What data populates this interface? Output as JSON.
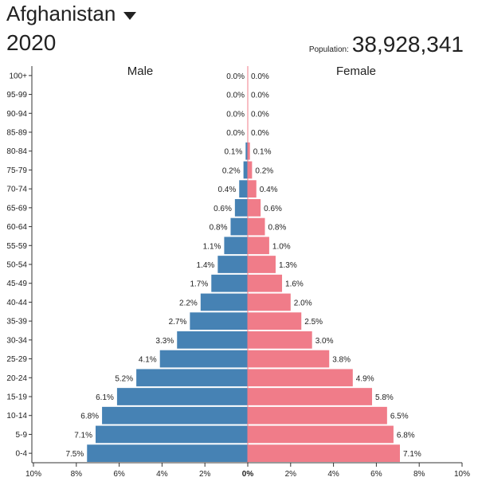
{
  "header": {
    "country": "Afghanistan",
    "year": "2020",
    "population_label": "Population:",
    "population_value": "38,928,341"
  },
  "colors": {
    "male": "#4682b4",
    "female": "#f07c89"
  },
  "chart_data": {
    "type": "bar",
    "orientation": "horizontal-population-pyramid",
    "categories": [
      "100+",
      "95-99",
      "90-94",
      "85-89",
      "80-84",
      "75-79",
      "70-74",
      "65-69",
      "60-64",
      "55-59",
      "50-54",
      "45-49",
      "40-44",
      "35-39",
      "30-34",
      "25-29",
      "20-24",
      "15-19",
      "10-14",
      "5-9",
      "0-4"
    ],
    "series": [
      {
        "name": "Male",
        "values": [
          0.0,
          0.0,
          0.0,
          0.0,
          0.1,
          0.2,
          0.4,
          0.6,
          0.8,
          1.1,
          1.4,
          1.7,
          2.2,
          2.7,
          3.3,
          4.1,
          5.2,
          6.1,
          6.8,
          7.1,
          7.5
        ],
        "labels": [
          "0.0%",
          "0.0%",
          "0.0%",
          "0.0%",
          "0.1%",
          "0.2%",
          "0.4%",
          "0.6%",
          "0.8%",
          "1.1%",
          "1.4%",
          "1.7%",
          "2.2%",
          "2.7%",
          "3.3%",
          "4.1%",
          "5.2%",
          "6.1%",
          "6.8%",
          "7.1%",
          "7.5%"
        ]
      },
      {
        "name": "Female",
        "values": [
          0.0,
          0.0,
          0.0,
          0.0,
          0.1,
          0.2,
          0.4,
          0.6,
          0.8,
          1.0,
          1.3,
          1.6,
          2.0,
          2.5,
          3.0,
          3.8,
          4.9,
          5.8,
          6.5,
          6.8,
          7.1
        ],
        "labels": [
          "0.0%",
          "0.0%",
          "0.0%",
          "0.0%",
          "0.1%",
          "0.2%",
          "0.4%",
          "0.6%",
          "0.8%",
          "1.0%",
          "1.3%",
          "1.6%",
          "2.0%",
          "2.5%",
          "3.0%",
          "3.8%",
          "4.9%",
          "5.8%",
          "6.5%",
          "6.8%",
          "7.1%"
        ]
      }
    ],
    "xlim": [
      -10,
      10
    ],
    "x_ticks": [
      -10,
      -8,
      -6,
      -4,
      -2,
      0,
      2,
      4,
      6,
      8,
      10
    ],
    "x_tick_labels": [
      "10%",
      "8%",
      "6%",
      "4%",
      "2%",
      "0%",
      "2%",
      "4%",
      "6%",
      "8%",
      "10%"
    ],
    "grid": false
  }
}
